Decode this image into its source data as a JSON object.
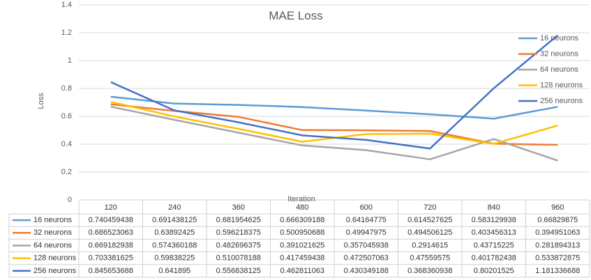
{
  "chart_data": {
    "type": "line",
    "title": "MAE Loss",
    "xlabel": "Iteration",
    "ylabel": "Loss",
    "ylim": [
      0,
      1.4
    ],
    "yticks": [
      "0",
      "0.2",
      "0.4",
      "0.6",
      "0.8",
      "1",
      "1.2",
      "1.4"
    ],
    "categories": [
      "120",
      "240",
      "360",
      "480",
      "600",
      "720",
      "840",
      "960"
    ],
    "grid": true,
    "legend_position": "right",
    "data_table": true,
    "series": [
      {
        "name": "16 neurons",
        "color": "#5b9bd5",
        "values": [
          0.740459438,
          0.691438125,
          0.681954625,
          0.666309188,
          0.64164775,
          0.614527625,
          0.583129938,
          0.66829875
        ],
        "labels": [
          "0.740459438",
          "0.691438125",
          "0.681954625",
          "0.666309188",
          "0.64164775",
          "0.614527625",
          "0.583129938",
          "0.66829875"
        ]
      },
      {
        "name": "32 neurons",
        "color": "#ed7d31",
        "values": [
          0.686523063,
          0.63892425,
          0.596218375,
          0.500950688,
          0.49947975,
          0.494506125,
          0.403456313,
          0.394951063
        ],
        "labels": [
          "0.686523063",
          "0.63892425",
          "0.596218375",
          "0.500950688",
          "0.49947975",
          "0.494506125",
          "0.403456313",
          "0.394951063"
        ]
      },
      {
        "name": "64 neurons",
        "color": "#a5a5a5",
        "values": [
          0.669182938,
          0.574360188,
          0.482696375,
          0.391021625,
          0.357045938,
          0.2914615,
          0.43715225,
          0.281894313
        ],
        "labels": [
          "0.669182938",
          "0.574360188",
          "0.482696375",
          "0.391021625",
          "0.357045938",
          "0.2914615",
          "0.43715225",
          "0.281894313"
        ]
      },
      {
        "name": "128 neurons",
        "color": "#ffc000",
        "values": [
          0.703381625,
          0.59838225,
          0.510078188,
          0.417459438,
          0.472507063,
          0.47559575,
          0.401782438,
          0.533872875
        ],
        "labels": [
          "0.703381625",
          "0.59838225",
          "0.510078188",
          "0.417459438",
          "0.472507063",
          "0.47559575",
          "0.401782438",
          "0.533872875"
        ]
      },
      {
        "name": "256 neurons",
        "color": "#4472c4",
        "values": [
          0.845653688,
          0.641895,
          0.556838125,
          0.462811063,
          0.430349188,
          0.368360938,
          0.80201525,
          1.181336688
        ],
        "labels": [
          "0.845653688",
          "0.641895",
          "0.556838125",
          "0.462811063",
          "0.430349188",
          "0.368360938",
          "0.80201525",
          "1.181336688"
        ]
      }
    ]
  }
}
